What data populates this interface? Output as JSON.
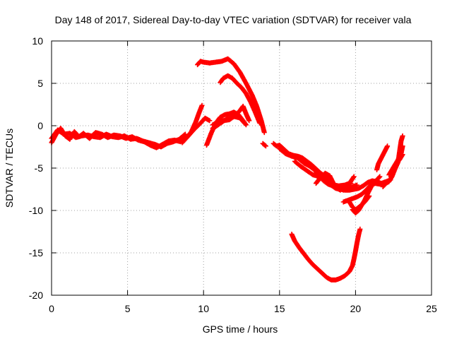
{
  "chart_data": {
    "type": "scatter",
    "title": "Day 148 of 2017, Sidereal Day-to-day VTEC variation (SDTVAR) for receiver vala",
    "xlabel": "GPS time / hours",
    "ylabel": "SDTVAR / TECUs",
    "xlim": [
      0,
      25
    ],
    "ylim": [
      -20,
      10
    ],
    "x_ticks": [
      0,
      5,
      10,
      15,
      20,
      25
    ],
    "y_ticks": [
      -20,
      -15,
      -10,
      -5,
      0,
      5,
      10
    ],
    "grid": true,
    "marker": "+",
    "color": "#ff0000",
    "series": [
      {
        "name": "SDTVAR",
        "segments": [
          [
            [
              0.0,
              -2.0
            ],
            [
              0.3,
              -1.0
            ],
            [
              0.6,
              -0.3
            ],
            [
              0.9,
              -1.2
            ],
            [
              1.2,
              -1.6
            ],
            [
              1.5,
              -0.7
            ],
            [
              1.8,
              -1.3
            ],
            [
              2.1,
              -0.9
            ],
            [
              2.5,
              -1.5
            ],
            [
              2.9,
              -0.8
            ],
            [
              3.3,
              -1.0
            ],
            [
              3.7,
              -1.4
            ],
            [
              4.1,
              -1.1
            ],
            [
              4.5,
              -1.2
            ],
            [
              4.9,
              -1.5
            ],
            [
              5.3,
              -1.3
            ],
            [
              5.7,
              -1.7
            ],
            [
              6.1,
              -1.9
            ],
            [
              6.5,
              -2.3
            ],
            [
              6.9,
              -2.6
            ],
            [
              7.3,
              -2.2
            ],
            [
              7.7,
              -1.8
            ],
            [
              8.1,
              -1.7
            ],
            [
              8.5,
              -1.9
            ],
            [
              8.9,
              -1.4
            ],
            [
              9.2,
              -0.7
            ],
            [
              9.5,
              0.5
            ],
            [
              9.7,
              1.5
            ],
            [
              9.9,
              2.4
            ]
          ],
          [
            [
              0.0,
              -1.5
            ],
            [
              0.4,
              -0.5
            ],
            [
              0.8,
              -1.0
            ],
            [
              1.2,
              -0.9
            ],
            [
              1.6,
              -1.4
            ],
            [
              2.0,
              -1.2
            ],
            [
              2.4,
              -1.1
            ],
            [
              2.8,
              -1.3
            ],
            [
              3.2,
              -1.4
            ],
            [
              3.6,
              -1.0
            ],
            [
              4.0,
              -1.3
            ],
            [
              4.4,
              -1.4
            ],
            [
              4.8,
              -1.2
            ],
            [
              5.2,
              -1.6
            ],
            [
              5.6,
              -1.5
            ],
            [
              6.0,
              -1.8
            ],
            [
              6.4,
              -2.0
            ],
            [
              6.8,
              -2.2
            ],
            [
              7.2,
              -2.5
            ],
            [
              7.6,
              -2.1
            ],
            [
              8.0,
              -1.9
            ],
            [
              8.4,
              -1.6
            ],
            [
              8.8,
              -1.0
            ]
          ],
          [
            [
              8.6,
              -2.0
            ],
            [
              9.0,
              -1.2
            ],
            [
              9.4,
              -0.4
            ],
            [
              9.8,
              0.3
            ],
            [
              10.1,
              0.9
            ],
            [
              10.4,
              0.6
            ]
          ],
          [
            [
              9.6,
              7.2
            ],
            [
              9.8,
              7.6
            ],
            [
              10.0,
              7.5
            ],
            [
              10.4,
              7.4
            ],
            [
              10.8,
              7.5
            ],
            [
              11.2,
              7.6
            ],
            [
              11.6,
              7.9
            ],
            [
              12.0,
              7.3
            ],
            [
              12.4,
              6.3
            ],
            [
              12.8,
              5.0
            ],
            [
              13.2,
              3.6
            ],
            [
              13.5,
              2.3
            ],
            [
              13.8,
              0.6
            ],
            [
              14.0,
              -0.8
            ]
          ],
          [
            [
              11.1,
              5.1
            ],
            [
              11.3,
              5.6
            ],
            [
              11.6,
              5.9
            ],
            [
              11.9,
              5.6
            ],
            [
              12.2,
              5.0
            ],
            [
              12.5,
              4.5
            ],
            [
              12.8,
              3.8
            ],
            [
              13.1,
              2.8
            ],
            [
              13.4,
              1.6
            ],
            [
              13.7,
              0.3
            ]
          ],
          [
            [
              10.2,
              -2.3
            ],
            [
              10.5,
              -0.9
            ],
            [
              10.8,
              0.3
            ],
            [
              11.1,
              1.0
            ],
            [
              11.4,
              1.3
            ],
            [
              11.7,
              1.4
            ],
            [
              12.0,
              1.6
            ],
            [
              12.3,
              1.3
            ],
            [
              12.6,
              0.6
            ],
            [
              12.8,
              0.1
            ]
          ],
          [
            [
              10.6,
              0.1
            ],
            [
              10.9,
              0.4
            ],
            [
              11.3,
              0.6
            ],
            [
              11.7,
              0.7
            ],
            [
              12.1,
              1.2
            ],
            [
              12.4,
              1.8
            ],
            [
              12.6,
              2.3
            ],
            [
              12.8,
              1.4
            ],
            [
              13.0,
              0.6
            ]
          ],
          [
            [
              10.6,
              -0.3
            ],
            [
              10.8,
              -0.1
            ],
            [
              11.2,
              0.4
            ],
            [
              11.6,
              0.9
            ],
            [
              12.0,
              1.1
            ],
            [
              12.4,
              0.9
            ],
            [
              12.7,
              0.3
            ]
          ],
          [
            [
              13.9,
              -2.1
            ],
            [
              14.1,
              -2.4
            ]
          ],
          [
            [
              14.6,
              -2.1
            ],
            [
              14.8,
              -2.4
            ],
            [
              15.0,
              -2.3
            ],
            [
              15.3,
              -2.8
            ],
            [
              15.6,
              -3.3
            ],
            [
              15.9,
              -3.5
            ],
            [
              16.2,
              -3.6
            ],
            [
              16.5,
              -3.8
            ],
            [
              16.8,
              -4.2
            ],
            [
              17.1,
              -4.6
            ],
            [
              17.4,
              -5.1
            ],
            [
              17.7,
              -5.6
            ],
            [
              18.0,
              -6.0
            ],
            [
              18.3,
              -6.5
            ],
            [
              18.6,
              -7.0
            ],
            [
              18.9,
              -7.3
            ],
            [
              19.2,
              -7.6
            ],
            [
              19.5,
              -7.5
            ],
            [
              19.8,
              -7.2
            ],
            [
              20.1,
              -7.0
            ]
          ],
          [
            [
              15.0,
              -2.7
            ],
            [
              15.4,
              -3.3
            ],
            [
              15.8,
              -3.6
            ],
            [
              16.2,
              -3.8
            ],
            [
              16.6,
              -4.4
            ],
            [
              17.0,
              -4.8
            ],
            [
              17.3,
              -5.2
            ],
            [
              17.6,
              -5.9
            ],
            [
              17.9,
              -6.5
            ],
            [
              18.2,
              -6.9
            ],
            [
              18.5,
              -7.1
            ],
            [
              18.8,
              -7.2
            ],
            [
              19.1,
              -7.1
            ],
            [
              19.4,
              -7.0
            ],
            [
              19.7,
              -6.8
            ]
          ],
          [
            [
              16.0,
              -4.2
            ],
            [
              16.4,
              -4.8
            ],
            [
              16.8,
              -5.3
            ],
            [
              17.2,
              -5.8
            ],
            [
              17.6,
              -6.0
            ],
            [
              18.0,
              -6.3
            ],
            [
              18.4,
              -7.0
            ],
            [
              18.7,
              -7.3
            ],
            [
              19.0,
              -7.6
            ]
          ],
          [
            [
              17.4,
              -6.8
            ],
            [
              17.7,
              -6.1
            ],
            [
              18.0,
              -5.6
            ],
            [
              18.3,
              -5.9
            ],
            [
              18.6,
              -7.0
            ],
            [
              18.9,
              -7.1
            ],
            [
              19.3,
              -7.0
            ],
            [
              19.6,
              -6.8
            ],
            [
              19.9,
              -6.0
            ]
          ],
          [
            [
              18.4,
              -7.0
            ],
            [
              18.7,
              -7.4
            ],
            [
              19.0,
              -7.5
            ],
            [
              19.3,
              -7.6
            ],
            [
              19.6,
              -7.6
            ],
            [
              19.9,
              -7.5
            ],
            [
              20.2,
              -7.4
            ],
            [
              20.5,
              -7.1
            ],
            [
              20.8,
              -6.7
            ],
            [
              21.1,
              -6.5
            ],
            [
              21.4,
              -6.6
            ],
            [
              21.7,
              -6.8
            ],
            [
              22.0,
              -6.6
            ],
            [
              22.3,
              -6.4
            ]
          ],
          [
            [
              19.2,
              -9.0
            ],
            [
              19.5,
              -8.8
            ],
            [
              19.8,
              -8.6
            ],
            [
              20.1,
              -8.4
            ],
            [
              20.4,
              -8.1
            ],
            [
              20.7,
              -7.6
            ],
            [
              21.0,
              -7.0
            ],
            [
              21.3,
              -6.8
            ],
            [
              21.6,
              -6.9
            ],
            [
              21.9,
              -6.8
            ]
          ],
          [
            [
              19.8,
              -9.9
            ],
            [
              20.0,
              -10.3
            ],
            [
              20.2,
              -10.0
            ],
            [
              20.4,
              -9.4
            ],
            [
              20.6,
              -8.8
            ],
            [
              20.8,
              -8.0
            ],
            [
              21.0,
              -7.3
            ],
            [
              21.2,
              -6.7
            ],
            [
              21.4,
              -6.4
            ],
            [
              21.6,
              -6.0
            ]
          ],
          [
            [
              19.6,
              -9.0
            ],
            [
              19.8,
              -9.6
            ],
            [
              20.0,
              -9.9
            ],
            [
              20.3,
              -9.5
            ],
            [
              20.6,
              -9.0
            ],
            [
              20.9,
              -8.3
            ]
          ],
          [
            [
              15.8,
              -12.8
            ],
            [
              16.0,
              -13.6
            ],
            [
              16.3,
              -14.4
            ],
            [
              16.6,
              -15.1
            ],
            [
              16.9,
              -15.8
            ],
            [
              17.2,
              -16.4
            ],
            [
              17.5,
              -16.9
            ],
            [
              17.8,
              -17.4
            ],
            [
              18.1,
              -17.9
            ],
            [
              18.4,
              -18.2
            ],
            [
              18.7,
              -18.2
            ],
            [
              19.0,
              -18.0
            ],
            [
              19.3,
              -17.7
            ],
            [
              19.6,
              -17.2
            ],
            [
              19.8,
              -16.5
            ],
            [
              19.9,
              -15.7
            ],
            [
              20.0,
              -14.8
            ],
            [
              20.1,
              -13.8
            ],
            [
              20.2,
              -12.9
            ],
            [
              20.3,
              -12.2
            ]
          ],
          [
            [
              21.4,
              -5.2
            ],
            [
              21.5,
              -4.5
            ],
            [
              21.7,
              -3.8
            ],
            [
              21.9,
              -3.1
            ],
            [
              22.1,
              -2.4
            ]
          ],
          [
            [
              21.8,
              -7.2
            ],
            [
              22.0,
              -6.8
            ],
            [
              22.2,
              -6.6
            ],
            [
              22.4,
              -6.0
            ],
            [
              22.6,
              -5.1
            ],
            [
              22.8,
              -4.3
            ],
            [
              22.9,
              -3.0
            ],
            [
              23.0,
              -1.8
            ],
            [
              23.1,
              -1.2
            ]
          ],
          [
            [
              22.5,
              -4.9
            ],
            [
              22.7,
              -4.4
            ],
            [
              22.9,
              -4.0
            ],
            [
              23.0,
              -3.7
            ],
            [
              23.1,
              -3.4
            ]
          ],
          [
            [
              22.2,
              -5.8
            ],
            [
              22.4,
              -5.2
            ],
            [
              22.6,
              -4.6
            ],
            [
              22.8,
              -4.0
            ],
            [
              23.0,
              -3.3
            ],
            [
              23.1,
              -2.4
            ]
          ]
        ]
      }
    ]
  }
}
